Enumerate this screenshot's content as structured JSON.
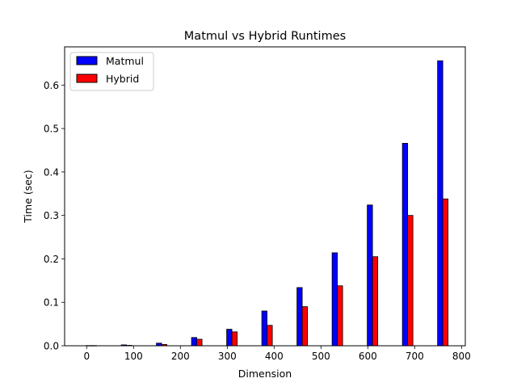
{
  "chart_data": {
    "type": "bar",
    "title": "Matmul vs Hybrid Runtimes",
    "xlabel": "Dimension",
    "ylabel": "Time (sec)",
    "x": [
      10,
      85,
      160,
      235,
      310,
      385,
      460,
      535,
      610,
      685,
      760
    ],
    "series": [
      {
        "name": "Matmul",
        "color": "#0000ff",
        "values": [
          0.0005,
          0.002,
          0.006,
          0.019,
          0.038,
          0.08,
          0.134,
          0.214,
          0.324,
          0.466,
          0.656
        ]
      },
      {
        "name": "Hybrid",
        "color": "#ff0000",
        "values": [
          0.0005,
          0.001,
          0.003,
          0.015,
          0.032,
          0.047,
          0.09,
          0.138,
          0.205,
          0.3,
          0.338
        ]
      }
    ],
    "xlim": [
      -47,
      808
    ],
    "ylim": [
      0,
      0.688
    ],
    "xticks": [
      0,
      100,
      200,
      300,
      400,
      500,
      600,
      700,
      800
    ],
    "yticks": [
      0.0,
      0.1,
      0.2,
      0.3,
      0.4,
      0.5,
      0.6
    ],
    "ytick_labels": [
      "0.0",
      "0.1",
      "0.2",
      "0.3",
      "0.4",
      "0.5",
      "0.6"
    ],
    "legend": "top-left",
    "grid": false,
    "bar_edge_color": "#000000"
  }
}
